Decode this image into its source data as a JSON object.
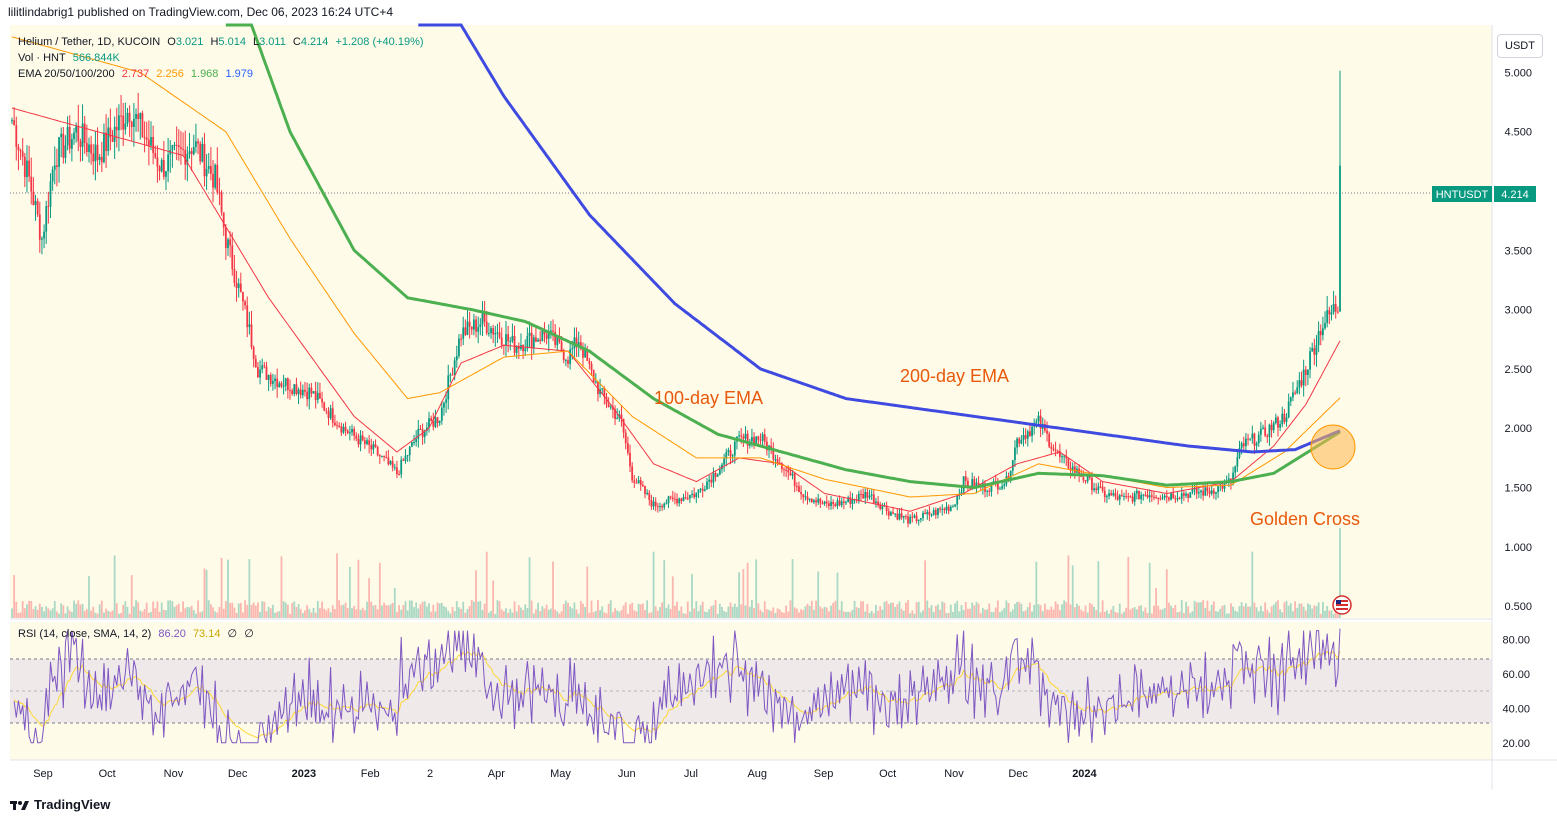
{
  "header": "lilitlindabrig1 published on TradingView.com, Dec 06, 2023 16:24 UTC+4",
  "legend": {
    "symbol": "Helium / Tether, 1D, KUCOIN",
    "o_label": "O",
    "o": "3.021",
    "h_label": "H",
    "h": "5.014",
    "l_label": "L",
    "l": "3.011",
    "c_label": "C",
    "c": "4.214",
    "chg": "+1.208 (+40.19%)",
    "vol_label": "Vol · HNT",
    "vol": "566.844K",
    "ema_label": "EMA 20/50/100/200",
    "ema20": "2.737",
    "ema50": "2.256",
    "ema100": "1.968",
    "ema200": "1.979"
  },
  "rsi_legend": {
    "label": "RSI (14, close, SMA, 14, 2)",
    "rsi": "86.20",
    "sma": "73.14",
    "x1": "∅",
    "x2": "∅"
  },
  "currency_button": "USDT",
  "price_tag": {
    "symbol": "HNTUSDT",
    "value": "4.214"
  },
  "annotations": {
    "ema100": "100-day EMA",
    "ema200": "200-day EMA",
    "cross": "Golden Cross"
  },
  "brand": "TradingView",
  "colors": {
    "up": "#089981",
    "down": "#f23645",
    "ema20": "#f23645",
    "ema50": "#ff9800",
    "ema100": "#4caf50",
    "ema200": "#3f4be0",
    "rsi": "#7e57c2",
    "rsi_sma": "#fdd835",
    "annotation": "#e8590c",
    "bg": "#fffbe9"
  },
  "chart_data": {
    "type": "candlestick",
    "x_ticks": [
      "Sep",
      "Oct",
      "Nov",
      "Dec",
      "2023",
      "Feb",
      "2",
      "Apr",
      "May",
      "Jun",
      "Jul",
      "Aug",
      "Sep",
      "Oct",
      "Nov",
      "Dec",
      "2024"
    ],
    "y_ticks": [
      "0.500",
      "1.000",
      "1.500",
      "2.000",
      "2.500",
      "3.000",
      "3.500",
      "4.000",
      "4.500",
      "5.000"
    ],
    "ylim": [
      0.4,
      5.4
    ],
    "rsi_ticks": [
      "20.00",
      "40.00",
      "60.00",
      "80.00"
    ],
    "rsi_ylim": [
      10,
      90
    ],
    "price_path": [
      [
        0,
        4.6
      ],
      [
        8,
        4.1
      ],
      [
        14,
        3.6
      ],
      [
        20,
        4.3
      ],
      [
        30,
        4.5
      ],
      [
        40,
        4.3
      ],
      [
        55,
        4.7
      ],
      [
        70,
        4.2
      ],
      [
        85,
        4.4
      ],
      [
        95,
        4.1
      ],
      [
        100,
        3.6
      ],
      [
        110,
        2.9
      ],
      [
        115,
        2.5
      ],
      [
        125,
        2.4
      ],
      [
        140,
        2.3
      ],
      [
        155,
        2.0
      ],
      [
        170,
        1.8
      ],
      [
        180,
        1.62
      ],
      [
        190,
        1.95
      ],
      [
        200,
        2.1
      ],
      [
        210,
        2.8
      ],
      [
        220,
        2.9
      ],
      [
        235,
        2.7
      ],
      [
        250,
        2.8
      ],
      [
        260,
        2.6
      ],
      [
        265,
        2.75
      ],
      [
        270,
        2.5
      ],
      [
        275,
        2.3
      ],
      [
        285,
        2.05
      ],
      [
        290,
        1.6
      ],
      [
        300,
        1.35
      ],
      [
        310,
        1.4
      ],
      [
        320,
        1.45
      ],
      [
        330,
        1.65
      ],
      [
        340,
        1.9
      ],
      [
        350,
        1.92
      ],
      [
        360,
        1.7
      ],
      [
        370,
        1.45
      ],
      [
        380,
        1.35
      ],
      [
        390,
        1.38
      ],
      [
        400,
        1.45
      ],
      [
        410,
        1.3
      ],
      [
        420,
        1.22
      ],
      [
        430,
        1.28
      ],
      [
        440,
        1.35
      ],
      [
        445,
        1.55
      ],
      [
        455,
        1.5
      ],
      [
        465,
        1.55
      ],
      [
        470,
        1.9
      ],
      [
        480,
        2.05
      ],
      [
        490,
        1.75
      ],
      [
        500,
        1.6
      ],
      [
        510,
        1.45
      ],
      [
        520,
        1.4
      ],
      [
        530,
        1.45
      ],
      [
        540,
        1.43
      ],
      [
        550,
        1.45
      ],
      [
        560,
        1.47
      ],
      [
        570,
        1.55
      ],
      [
        575,
        1.85
      ],
      [
        585,
        1.95
      ],
      [
        595,
        2.1
      ],
      [
        605,
        2.5
      ],
      [
        612,
        2.85
      ],
      [
        618,
        3.0
      ],
      [
        620,
        3.02
      ],
      [
        621,
        4.214
      ]
    ],
    "ema_paths": {
      "ema20": [
        [
          0,
          4.7
        ],
        [
          40,
          4.5
        ],
        [
          80,
          4.3
        ],
        [
          100,
          3.7
        ],
        [
          120,
          3.1
        ],
        [
          140,
          2.6
        ],
        [
          160,
          2.1
        ],
        [
          180,
          1.8
        ],
        [
          195,
          2.0
        ],
        [
          210,
          2.55
        ],
        [
          230,
          2.7
        ],
        [
          260,
          2.65
        ],
        [
          280,
          2.2
        ],
        [
          300,
          1.7
        ],
        [
          320,
          1.55
        ],
        [
          340,
          1.75
        ],
        [
          360,
          1.7
        ],
        [
          380,
          1.45
        ],
        [
          420,
          1.3
        ],
        [
          445,
          1.45
        ],
        [
          470,
          1.7
        ],
        [
          490,
          1.8
        ],
        [
          510,
          1.55
        ],
        [
          540,
          1.45
        ],
        [
          570,
          1.55
        ],
        [
          590,
          1.85
        ],
        [
          605,
          2.2
        ],
        [
          621,
          2.737
        ]
      ],
      "ema50": [
        [
          0,
          5.3
        ],
        [
          60,
          5.0
        ],
        [
          100,
          4.5
        ],
        [
          130,
          3.6
        ],
        [
          160,
          2.8
        ],
        [
          185,
          2.25
        ],
        [
          200,
          2.3
        ],
        [
          230,
          2.6
        ],
        [
          260,
          2.65
        ],
        [
          290,
          2.1
        ],
        [
          320,
          1.75
        ],
        [
          350,
          1.75
        ],
        [
          380,
          1.57
        ],
        [
          420,
          1.42
        ],
        [
          450,
          1.45
        ],
        [
          480,
          1.7
        ],
        [
          510,
          1.6
        ],
        [
          540,
          1.5
        ],
        [
          570,
          1.52
        ],
        [
          595,
          1.8
        ],
        [
          621,
          2.256
        ]
      ],
      "ema100": [
        [
          100,
          6.0
        ],
        [
          130,
          4.5
        ],
        [
          160,
          3.5
        ],
        [
          185,
          3.1
        ],
        [
          215,
          3.0
        ],
        [
          240,
          2.9
        ],
        [
          270,
          2.65
        ],
        [
          300,
          2.25
        ],
        [
          330,
          1.95
        ],
        [
          360,
          1.8
        ],
        [
          390,
          1.65
        ],
        [
          420,
          1.55
        ],
        [
          450,
          1.5
        ],
        [
          480,
          1.62
        ],
        [
          510,
          1.6
        ],
        [
          540,
          1.52
        ],
        [
          570,
          1.55
        ],
        [
          590,
          1.62
        ],
        [
          621,
          1.968
        ]
      ],
      "ema200": [
        [
          190,
          6.0
        ],
        [
          230,
          4.8
        ],
        [
          270,
          3.8
        ],
        [
          310,
          3.05
        ],
        [
          350,
          2.5
        ],
        [
          390,
          2.25
        ],
        [
          430,
          2.15
        ],
        [
          470,
          2.05
        ],
        [
          510,
          1.95
        ],
        [
          550,
          1.85
        ],
        [
          580,
          1.8
        ],
        [
          600,
          1.82
        ],
        [
          621,
          1.979
        ]
      ]
    }
  }
}
